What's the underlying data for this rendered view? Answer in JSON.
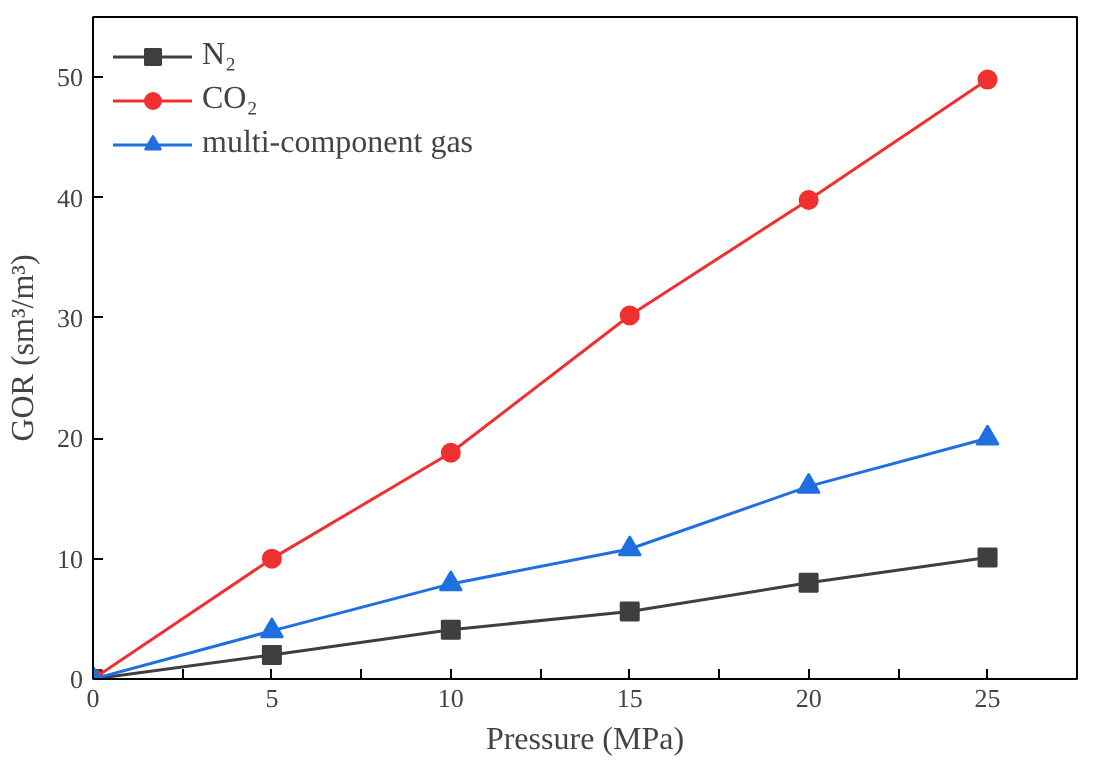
{
  "chart_data": {
    "type": "line",
    "xlabel": "Pressure (MPa)",
    "ylabel": "GOR (sm³/m³)",
    "x": [
      0,
      5,
      10,
      15,
      20,
      25
    ],
    "series": [
      {
        "name": "N₂",
        "color": "#3f3f3f",
        "marker": "square",
        "values": [
          0,
          2,
          4.1,
          5.6,
          8,
          10.1
        ]
      },
      {
        "name": "CO₂",
        "color": "#f03030",
        "marker": "circle",
        "values": [
          0,
          10,
          18.8,
          30.2,
          39.8,
          49.8
        ]
      },
      {
        "name": "multi-component gas",
        "color": "#1f6fe0",
        "marker": "triangle",
        "values": [
          0,
          4,
          7.9,
          10.8,
          16,
          20
        ]
      }
    ],
    "xlim": [
      0,
      27.5
    ],
    "ylim": [
      0,
      55
    ],
    "xticks": [
      0,
      {
        "value": 2.5,
        "label": null
      },
      5,
      {
        "value": 7.5,
        "label": null
      },
      10,
      {
        "value": 12.5,
        "label": null
      },
      15,
      {
        "value": 17.5,
        "label": null
      },
      20,
      {
        "value": 22.5,
        "label": null
      },
      25
    ],
    "yticks": [
      0,
      10,
      20,
      30,
      40,
      50
    ],
    "grid": false,
    "legend": "top left",
    "line_style": "solid"
  }
}
